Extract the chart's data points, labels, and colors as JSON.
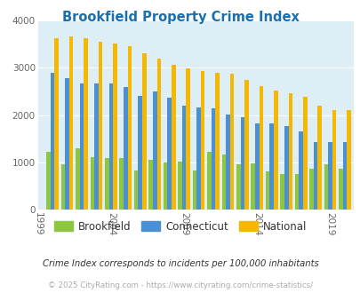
{
  "title": "Brookfield Property Crime Index",
  "title_color": "#1a6faf",
  "plot_bg_color": "#ddeef6",
  "outer_bg_color": "#ffffff",
  "years": [
    2000,
    2001,
    2002,
    2003,
    2004,
    2005,
    2006,
    2007,
    2008,
    2009,
    2010,
    2011,
    2012,
    2013,
    2014,
    2015,
    2016,
    2017,
    2018,
    2019,
    2020
  ],
  "brookfield": [
    1220,
    950,
    1300,
    1100,
    1080,
    1080,
    830,
    1050,
    1000,
    1010,
    820,
    1220,
    1160,
    960,
    980,
    800,
    750,
    760,
    860,
    950,
    860
  ],
  "connecticut": [
    2900,
    2780,
    2670,
    2670,
    2670,
    2600,
    2400,
    2500,
    2360,
    2190,
    2160,
    2150,
    2010,
    1950,
    1820,
    1820,
    1760,
    1660,
    1420,
    1420,
    1420
  ],
  "national": [
    3620,
    3660,
    3620,
    3560,
    3520,
    3450,
    3300,
    3200,
    3060,
    2990,
    2940,
    2900,
    2870,
    2750,
    2620,
    2510,
    2470,
    2390,
    2190,
    2100,
    2100
  ],
  "bar_colors": {
    "brookfield": "#8dc63f",
    "connecticut": "#4b8fd4",
    "national": "#f5b800"
  },
  "ylim": [
    0,
    4000
  ],
  "yticks": [
    0,
    1000,
    2000,
    3000,
    4000
  ],
  "xtick_year_labels": [
    "1999",
    "2004",
    "2009",
    "2014",
    "2019"
  ],
  "legend_labels": [
    "Brookfield",
    "Connecticut",
    "National"
  ],
  "footnote1": "Crime Index corresponds to incidents per 100,000 inhabitants",
  "footnote2": "© 2025 CityRating.com - https://www.cityrating.com/crime-statistics/",
  "footnote2_color": "#aaaaaa",
  "grid_color": "#ffffff"
}
